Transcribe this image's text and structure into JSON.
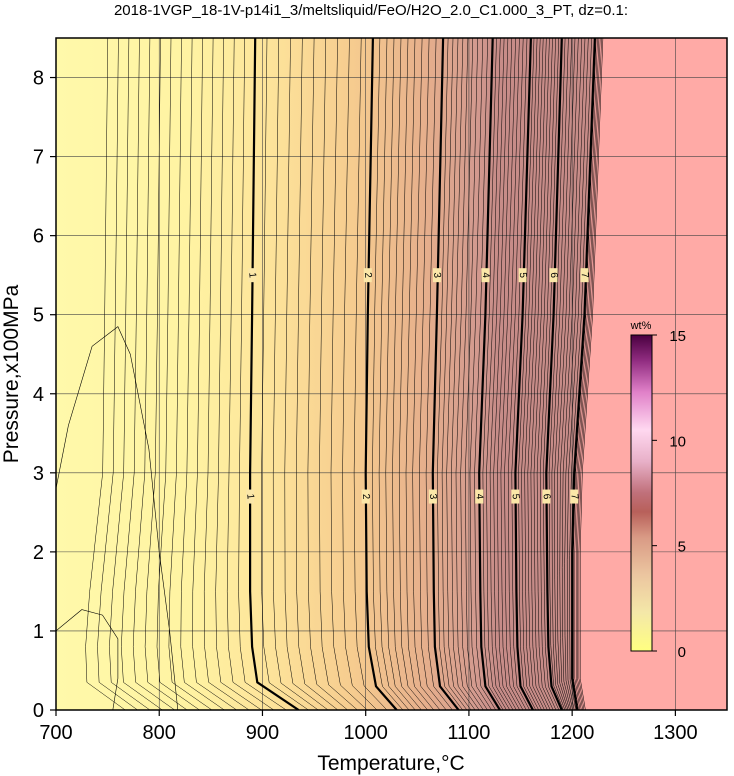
{
  "chart_data": {
    "type": "contour",
    "title": "2018-1VGP_18-1V-p14i1_3/meltsliquid/FeO/H2O_2.0_C1.000_3_PT, dz=0.1:",
    "xlabel": "Temperature,°C",
    "ylabel": "Pressure,x100MPa",
    "xlim": [
      700,
      1350
    ],
    "ylim": [
      0,
      8.5
    ],
    "x_ticks": [
      700,
      800,
      900,
      1000,
      1100,
      1200,
      1300
    ],
    "y_ticks": [
      0,
      1,
      2,
      3,
      4,
      5,
      6,
      7,
      8
    ],
    "grid": true,
    "contour_interval": 0.1,
    "major_contours": [
      {
        "level": "1",
        "points": [
          [
            935,
            0
          ],
          [
            895,
            0.35
          ],
          [
            890,
            0.8
          ],
          [
            888,
            1.5
          ],
          [
            888,
            3
          ],
          [
            890,
            5
          ],
          [
            893,
            8.5
          ]
        ],
        "labels_at": [
          [
            888,
            2.7
          ],
          [
            890,
            5.5
          ]
        ]
      },
      {
        "level": "2",
        "points": [
          [
            1030,
            0
          ],
          [
            1010,
            0.3
          ],
          [
            1003,
            0.8
          ],
          [
            1001,
            1.5
          ],
          [
            1000,
            3
          ],
          [
            1002,
            5
          ],
          [
            1007,
            8.5
          ]
        ],
        "labels_at": [
          [
            1000,
            2.7
          ],
          [
            1002,
            5.5
          ]
        ]
      },
      {
        "level": "3",
        "points": [
          [
            1090,
            0
          ],
          [
            1072,
            0.3
          ],
          [
            1067,
            0.8
          ],
          [
            1066,
            1.5
          ],
          [
            1065,
            3
          ],
          [
            1069,
            5
          ],
          [
            1075,
            8.5
          ]
        ],
        "labels_at": [
          [
            1065,
            2.7
          ],
          [
            1069,
            5.5
          ]
        ]
      },
      {
        "level": "4",
        "points": [
          [
            1130,
            0
          ],
          [
            1116,
            0.3
          ],
          [
            1112,
            0.8
          ],
          [
            1111,
            1.5
          ],
          [
            1110,
            3
          ],
          [
            1116,
            5
          ],
          [
            1123,
            8.5
          ]
        ],
        "labels_at": [
          [
            1110,
            2.7
          ],
          [
            1116,
            5.5
          ]
        ]
      },
      {
        "level": "5",
        "points": [
          [
            1162,
            0
          ],
          [
            1150,
            0.3
          ],
          [
            1147,
            0.8
          ],
          [
            1146,
            1.5
          ],
          [
            1145,
            3
          ],
          [
            1152,
            5
          ],
          [
            1160,
            8.5
          ]
        ],
        "labels_at": [
          [
            1145,
            2.7
          ],
          [
            1152,
            5.5
          ]
        ]
      },
      {
        "level": "6",
        "points": [
          [
            1190,
            0
          ],
          [
            1180,
            0.3
          ],
          [
            1177,
            0.8
          ],
          [
            1176,
            1.5
          ],
          [
            1175,
            3
          ],
          [
            1182,
            5
          ],
          [
            1190,
            8.5
          ]
        ],
        "labels_at": [
          [
            1175,
            2.7
          ],
          [
            1182,
            5.5
          ]
        ]
      },
      {
        "level": "7",
        "points": [
          [
            1205,
            0
          ],
          [
            1200,
            0.4
          ],
          [
            1200,
            1
          ],
          [
            1200,
            2
          ],
          [
            1202,
            3
          ],
          [
            1212,
            5
          ],
          [
            1222,
            8.5
          ]
        ],
        "labels_at": [
          [
            1202,
            2.7
          ],
          [
            1212,
            5.5
          ]
        ]
      }
    ],
    "minor_contours": [
      {
        "points": [
          [
            700,
            2.8
          ],
          [
            712,
            3.6
          ],
          [
            735,
            4.6
          ],
          [
            760,
            4.85
          ],
          [
            772,
            4.5
          ],
          [
            790,
            3.3
          ],
          [
            800,
            2.0
          ],
          [
            810,
            1.0
          ],
          [
            818,
            0
          ]
        ]
      },
      {
        "points": [
          [
            700,
            1.0
          ],
          [
            725,
            1.27
          ],
          [
            745,
            1.2
          ],
          [
            760,
            0.9
          ],
          [
            760,
            0.4
          ],
          [
            755,
            0
          ]
        ]
      }
    ],
    "fill_colors": {
      "low": "#fff9aa",
      "mid": "#f2c48c",
      "high": "#d0928f",
      "max": "#ffaaa6"
    },
    "colorbar": {
      "unit": "wt%",
      "ticks": [
        0,
        5,
        10,
        15
      ],
      "range": [
        0,
        15
      ],
      "colors": [
        "#ffff80",
        "#f2d8a0",
        "#e8b090",
        "#b8605a",
        "#c080a0",
        "#ffccee",
        "#a03080",
        "#500040"
      ]
    }
  }
}
